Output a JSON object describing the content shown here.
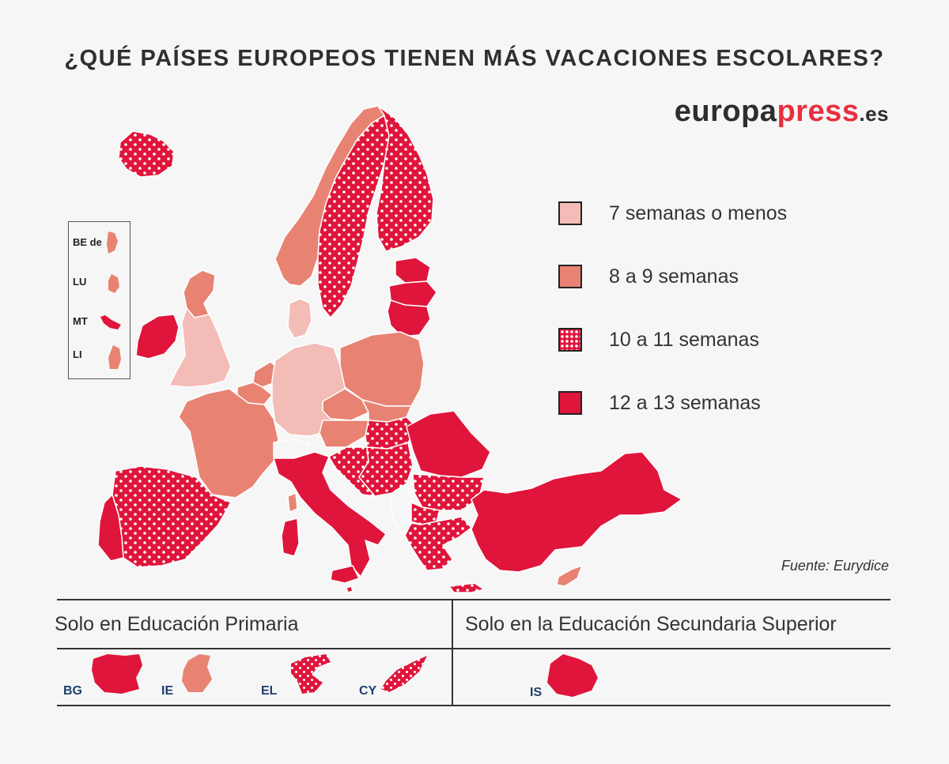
{
  "title": "¿QUÉ PAÍSES EUROPEOS TIENEN MÁS VACACIONES ESCOLARES?",
  "brand": {
    "part1": "europa",
    "part2": "press",
    "part3": ".es"
  },
  "legend": [
    {
      "label": "7 semanas o menos",
      "category": "light",
      "color": "#f4bcb6"
    },
    {
      "label": "8 a 9 semanas",
      "category": "mid",
      "color": "#e88373"
    },
    {
      "label": "10 a 11 semanas",
      "category": "dotted",
      "color": "#e0153b"
    },
    {
      "label": "12 a 13 semanas",
      "category": "red",
      "color": "#e0153b"
    }
  ],
  "source": "Fuente: Eurydice",
  "inset": {
    "items": [
      {
        "code": "BE de",
        "category": "mid"
      },
      {
        "code": "LU",
        "category": "mid"
      },
      {
        "code": "MT",
        "category": "red"
      },
      {
        "code": "LI",
        "category": "mid"
      }
    ]
  },
  "table": {
    "primary_header": "Solo en Educación Primaria",
    "secondary_header": "Solo en la Educación Secundaria Superior",
    "primary_countries": [
      {
        "code": "BG",
        "category": "red"
      },
      {
        "code": "IE",
        "category": "mid"
      },
      {
        "code": "EL",
        "category": "dotted"
      },
      {
        "code": "CY",
        "category": "dotted"
      }
    ],
    "secondary_countries": [
      {
        "code": "IS",
        "category": "red"
      }
    ]
  },
  "colors": {
    "light": "#f4bcb6",
    "mid": "#e88373",
    "red": "#e0153b",
    "background": "#f6f6f6",
    "border": "#ffffff"
  }
}
